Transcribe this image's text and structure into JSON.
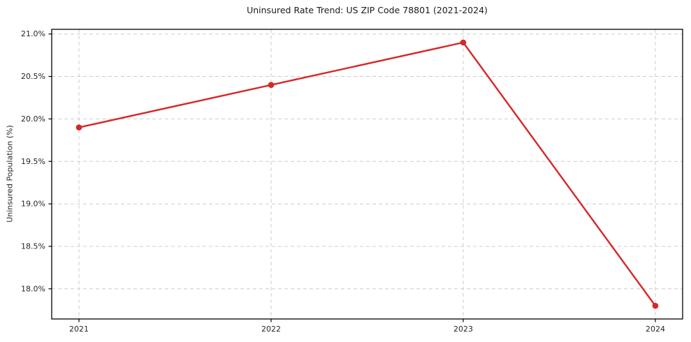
{
  "chart_data": {
    "type": "line",
    "title": "Uninsured Rate Trend: US ZIP Code 78801 (2021-2024)",
    "xlabel": "",
    "ylabel": "Uninsured Population (%)",
    "x": [
      2021,
      2022,
      2023,
      2024
    ],
    "x_tick_labels": [
      "2021",
      "2022",
      "2023",
      "2024"
    ],
    "series": [
      {
        "name": "Uninsured rate",
        "values": [
          19.9,
          20.4,
          20.9,
          17.8
        ],
        "color": "#d62728",
        "marker": "circle"
      }
    ],
    "y_ticks": [
      18.0,
      18.5,
      19.0,
      19.5,
      20.0,
      20.5,
      21.0
    ],
    "y_tick_labels": [
      "18.0%",
      "18.5%",
      "19.0%",
      "19.5%",
      "20.0%",
      "20.5%",
      "21.0%"
    ],
    "xlim": [
      2020.858,
      2024.142
    ],
    "ylim": [
      17.645,
      21.055
    ],
    "grid": true,
    "grid_style": "dashed",
    "legend": "none",
    "colors": {
      "line": "#d62728",
      "marker": "#d62728",
      "grid": "#cccccc",
      "axis": "#000000",
      "text": "#262626",
      "background": "#ffffff"
    }
  }
}
